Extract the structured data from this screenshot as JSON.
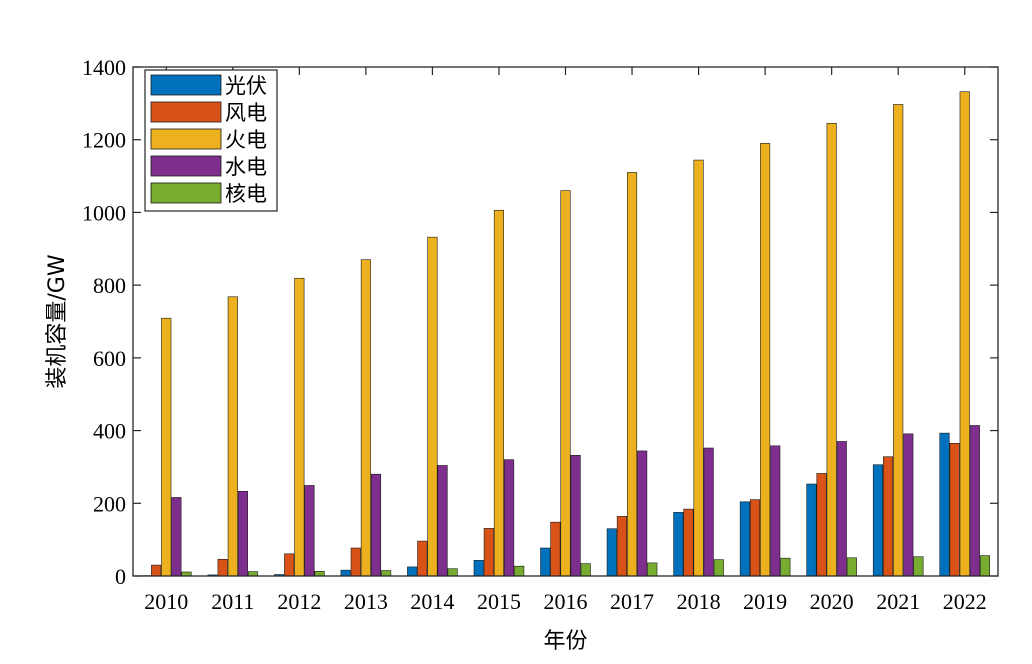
{
  "chart_data": {
    "type": "bar",
    "title": "",
    "xlabel": "年份",
    "ylabel": "装机容量/GW",
    "ylim": [
      0,
      1400
    ],
    "yticks": [
      0,
      200,
      400,
      600,
      800,
      1000,
      1200,
      1400
    ],
    "grid": false,
    "legend_position": "top-left",
    "categories": [
      "2010",
      "2011",
      "2012",
      "2013",
      "2014",
      "2015",
      "2016",
      "2017",
      "2018",
      "2019",
      "2020",
      "2021",
      "2022"
    ],
    "series": [
      {
        "name": "光伏",
        "color": "#0072BD",
        "values": [
          1,
          3,
          4,
          16,
          25,
          43,
          77,
          130,
          175,
          204,
          253,
          306,
          393
        ]
      },
      {
        "name": "风电",
        "color": "#D95319",
        "values": [
          30,
          46,
          61,
          77,
          96,
          131,
          148,
          164,
          184,
          210,
          282,
          328,
          365
        ]
      },
      {
        "name": "火电",
        "color": "#EDB120",
        "values": [
          709,
          768,
          819,
          870,
          932,
          1006,
          1060,
          1110,
          1144,
          1190,
          1245,
          1297,
          1332
        ]
      },
      {
        "name": "水电",
        "color": "#7E2F8E",
        "values": [
          216,
          233,
          249,
          280,
          304,
          320,
          332,
          344,
          352,
          358,
          370,
          391,
          414
        ]
      },
      {
        "name": "核电",
        "color": "#77AC30",
        "values": [
          11,
          12,
          13,
          15,
          20,
          27,
          34,
          36,
          45,
          49,
          50,
          53,
          56
        ]
      }
    ]
  }
}
